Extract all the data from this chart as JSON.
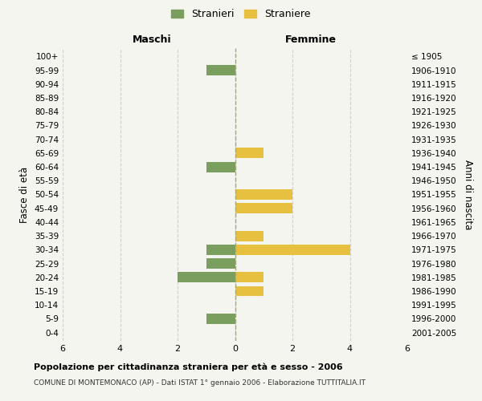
{
  "age_groups_top_to_bottom": [
    "100+",
    "95-99",
    "90-94",
    "85-89",
    "80-84",
    "75-79",
    "70-74",
    "65-69",
    "60-64",
    "55-59",
    "50-54",
    "45-49",
    "40-44",
    "35-39",
    "30-34",
    "25-29",
    "20-24",
    "15-19",
    "10-14",
    "5-9",
    "0-4"
  ],
  "birth_years_top_to_bottom": [
    "≤ 1905",
    "1906-1910",
    "1911-1915",
    "1916-1920",
    "1921-1925",
    "1926-1930",
    "1931-1935",
    "1936-1940",
    "1941-1945",
    "1946-1950",
    "1951-1955",
    "1956-1960",
    "1961-1965",
    "1966-1970",
    "1971-1975",
    "1976-1980",
    "1981-1985",
    "1986-1990",
    "1991-1995",
    "1996-2000",
    "2001-2005"
  ],
  "maschi_top_to_bottom": [
    0,
    1,
    0,
    0,
    0,
    0,
    0,
    0,
    1,
    0,
    0,
    0,
    0,
    0,
    1,
    1,
    2,
    0,
    0,
    1,
    0
  ],
  "femmine_top_to_bottom": [
    0,
    0,
    0,
    0,
    0,
    0,
    0,
    1,
    0,
    0,
    2,
    2,
    0,
    1,
    4,
    0,
    1,
    1,
    0,
    0,
    0
  ],
  "maschi_color": "#7a9e5e",
  "femmine_color": "#e8c040",
  "legend_maschi_label": "Stranieri",
  "legend_femmine_label": "Straniere",
  "header_left": "Maschi",
  "header_right": "Femmine",
  "ylabel_left": "Fasce di età",
  "ylabel_right": "Anni di nascita",
  "title": "Popolazione per cittadinanza straniera per età e sesso - 2006",
  "subtitle": "COMUNE DI MONTEMONACO (AP) - Dati ISTAT 1° gennaio 2006 - Elaborazione TUTTITALIA.IT",
  "xlim": 6,
  "xticks": [
    -6,
    -4,
    -2,
    0,
    2,
    4,
    6
  ],
  "xtick_labels": [
    "6",
    "4",
    "2",
    "0",
    "2",
    "4",
    "6"
  ],
  "background_color": "#f5f5f0",
  "grid_color": "#d0d0c8",
  "bar_height": 0.75
}
